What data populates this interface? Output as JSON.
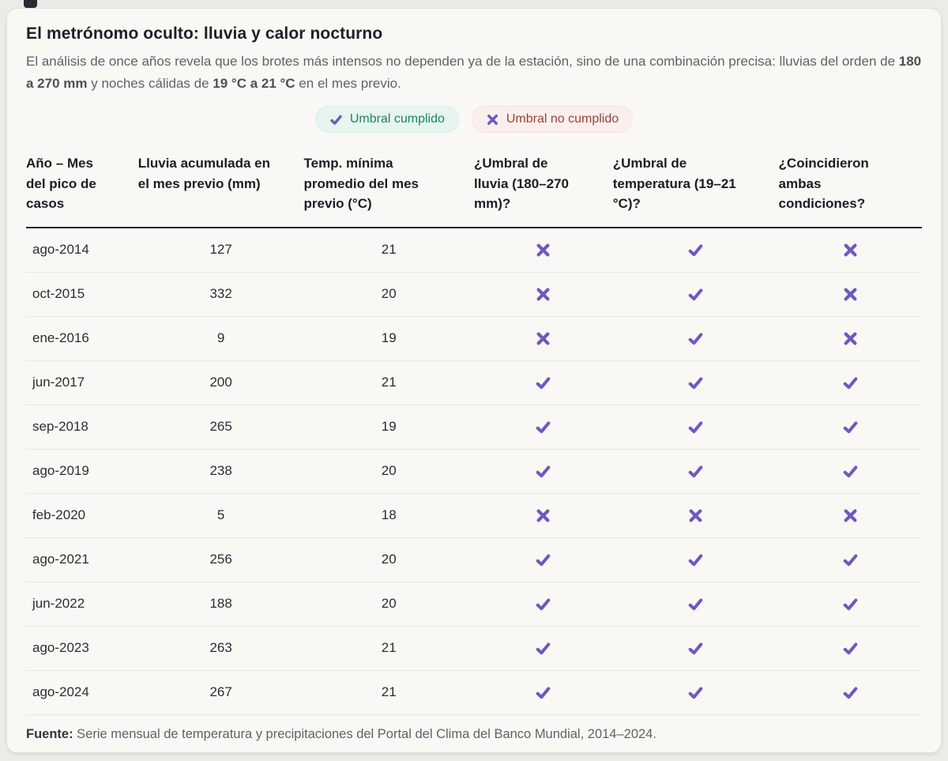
{
  "header": {
    "title": "El metrónomo oculto: lluvia y calor nocturno",
    "subtitle_p1": "El análisis de once años revela que los brotes más intensos no dependen ya de la estación, sino de una combinación precisa: lluvias del orden de ",
    "subtitle_b1": "180 a 270 mm",
    "subtitle_p2": " y noches cálidas de ",
    "subtitle_b2": "19 °C a 21 °C",
    "subtitle_p3": " en el mes previo."
  },
  "legend": {
    "met_label": "Umbral cumplido",
    "not_met_label": "Umbral no cumplido"
  },
  "icons": {
    "met_name": "check-icon",
    "not_met_name": "x-icon"
  },
  "colors": {
    "purple": "#6a5ac1",
    "badge_met_bg": "#e6f5ed",
    "badge_met_text": "#22806b",
    "badge_notmet_bg": "#fbefec",
    "badge_notmet_text": "#95443c",
    "header_rule": "#23272f",
    "card_bg": "#f9f8f5"
  },
  "table": {
    "columns": [
      "Año – Mes del pico de casos",
      "Lluvia acumulada en el mes previo (mm)",
      "Temp. mínima promedio del mes previo (°C)",
      "¿Umbral de lluvia (180–270 mm)?",
      "¿Umbral de temperatura (19–21 °C)?",
      "¿Coincidieron ambas condiciones?"
    ],
    "rows": [
      {
        "period": "ago-2014",
        "rain_mm": 127,
        "temp_c": 21,
        "rain_ok": false,
        "temp_ok": true,
        "both_ok": false
      },
      {
        "period": "oct-2015",
        "rain_mm": 332,
        "temp_c": 20,
        "rain_ok": false,
        "temp_ok": true,
        "both_ok": false
      },
      {
        "period": "ene-2016",
        "rain_mm": 9,
        "temp_c": 19,
        "rain_ok": false,
        "temp_ok": true,
        "both_ok": false
      },
      {
        "period": "jun-2017",
        "rain_mm": 200,
        "temp_c": 21,
        "rain_ok": true,
        "temp_ok": true,
        "both_ok": true
      },
      {
        "period": "sep-2018",
        "rain_mm": 265,
        "temp_c": 19,
        "rain_ok": true,
        "temp_ok": true,
        "both_ok": true
      },
      {
        "period": "ago-2019",
        "rain_mm": 238,
        "temp_c": 20,
        "rain_ok": true,
        "temp_ok": true,
        "both_ok": true
      },
      {
        "period": "feb-2020",
        "rain_mm": 5,
        "temp_c": 18,
        "rain_ok": false,
        "temp_ok": false,
        "both_ok": false
      },
      {
        "period": "ago-2021",
        "rain_mm": 256,
        "temp_c": 20,
        "rain_ok": true,
        "temp_ok": true,
        "both_ok": true
      },
      {
        "period": "jun-2022",
        "rain_mm": 188,
        "temp_c": 20,
        "rain_ok": true,
        "temp_ok": true,
        "both_ok": true
      },
      {
        "period": "ago-2023",
        "rain_mm": 263,
        "temp_c": 21,
        "rain_ok": true,
        "temp_ok": true,
        "both_ok": true
      },
      {
        "period": "ago-2024",
        "rain_mm": 267,
        "temp_c": 21,
        "rain_ok": true,
        "temp_ok": true,
        "both_ok": true
      }
    ]
  },
  "footer": {
    "label": "Fuente:",
    "text": " Serie mensual de temperatura y precipitaciones del Portal del Clima del Banco Mundial, 2014–2024."
  },
  "chart_data": {
    "type": "table",
    "title": "El metrónomo oculto: lluvia y calor nocturno",
    "legend_entries": [
      "Umbral cumplido",
      "Umbral no cumplido"
    ],
    "thresholds": {
      "rain_mm": [
        180,
        270
      ],
      "temp_min_c": [
        19,
        21
      ]
    },
    "columns": [
      "Año – Mes del pico de casos",
      "Lluvia acumulada en el mes previo (mm)",
      "Temp. mínima promedio del mes previo (°C)",
      "¿Umbral de lluvia (180–270 mm)?",
      "¿Umbral de temperatura (19–21 °C)?",
      "¿Coincidieron ambas condiciones?"
    ],
    "rows": [
      [
        "ago-2014",
        127,
        21,
        false,
        true,
        false
      ],
      [
        "oct-2015",
        332,
        20,
        false,
        true,
        false
      ],
      [
        "ene-2016",
        9,
        19,
        false,
        true,
        false
      ],
      [
        "jun-2017",
        200,
        21,
        true,
        true,
        true
      ],
      [
        "sep-2018",
        265,
        19,
        true,
        true,
        true
      ],
      [
        "ago-2019",
        238,
        20,
        true,
        true,
        true
      ],
      [
        "feb-2020",
        5,
        18,
        false,
        false,
        false
      ],
      [
        "ago-2021",
        256,
        20,
        true,
        true,
        true
      ],
      [
        "jun-2022",
        188,
        20,
        true,
        true,
        true
      ],
      [
        "ago-2023",
        263,
        21,
        true,
        true,
        true
      ],
      [
        "ago-2024",
        267,
        21,
        true,
        true,
        true
      ]
    ],
    "source": "Serie mensual de temperatura y precipitaciones del Portal del Clima del Banco Mundial, 2014–2024."
  }
}
